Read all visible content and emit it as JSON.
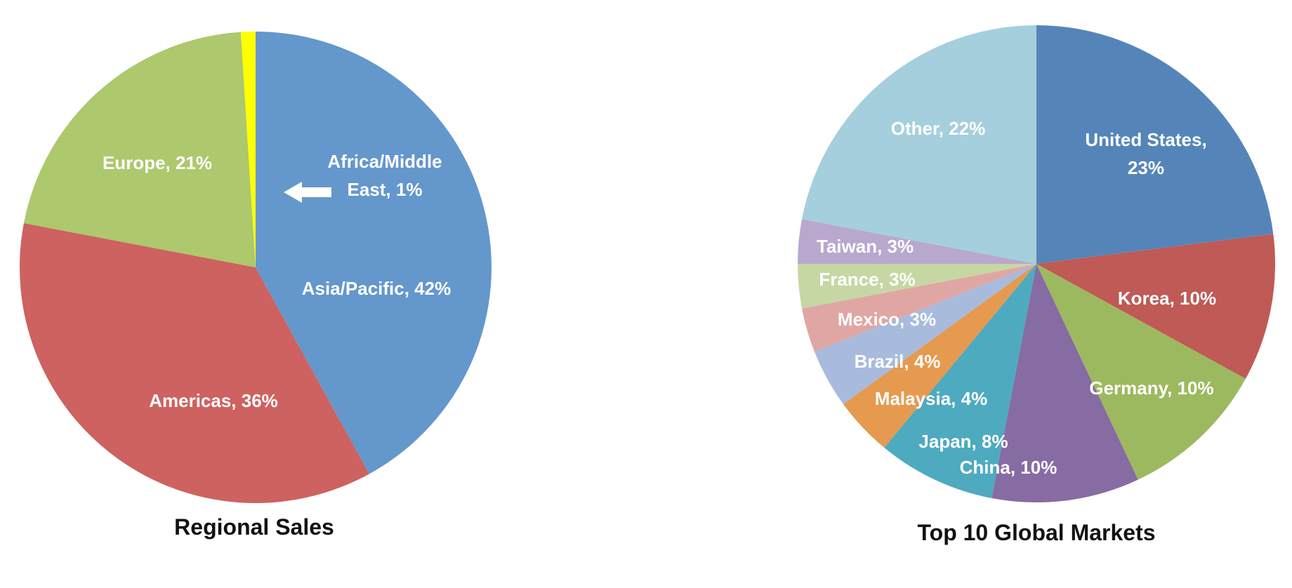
{
  "chart_data": [
    {
      "type": "pie",
      "title": "Regional Sales",
      "slices": [
        {
          "label": "Asia/Pacific, 42%",
          "name": "Asia/Pacific",
          "value": 42,
          "color": "#6497CC"
        },
        {
          "label": "Americas, 36%",
          "name": "Americas",
          "value": 36,
          "color": "#CD6260"
        },
        {
          "label": "Europe, 21%",
          "name": "Europe",
          "value": 21,
          "color": "#ADC86D"
        },
        {
          "label": "Africa/Middle East, 1%",
          "name": "Africa/Middle East",
          "value": 1,
          "color": "#FFFF00"
        }
      ]
    },
    {
      "type": "pie",
      "title": "Top 10 Global Markets",
      "slices": [
        {
          "label": "United States, 23%",
          "name": "United States",
          "value": 23,
          "color": "#5585B8"
        },
        {
          "label": "Korea, 10%",
          "name": "Korea",
          "value": 10,
          "color": "#BF5A56"
        },
        {
          "label": "Germany, 10%",
          "name": "Germany",
          "value": 10,
          "color": "#9DB95F"
        },
        {
          "label": "China, 10%",
          "name": "China",
          "value": 10,
          "color": "#876BA3"
        },
        {
          "label": "Japan, 8%",
          "name": "Japan",
          "value": 8,
          "color": "#4EAABF"
        },
        {
          "label": "Malaysia, 4%",
          "name": "Malaysia",
          "value": 4,
          "color": "#E59A4F"
        },
        {
          "label": "Brazil, 4%",
          "name": "Brazil",
          "value": 4,
          "color": "#A8BBDD"
        },
        {
          "label": "Mexico, 3%",
          "name": "Mexico",
          "value": 3,
          "color": "#DFA6A4"
        },
        {
          "label": "France, 3%",
          "name": "France",
          "value": 3,
          "color": "#C6D7A4"
        },
        {
          "label": "Taiwan, 3%",
          "name": "Taiwan",
          "value": 3,
          "color": "#B8A8CD"
        },
        {
          "label": "Other, 22%",
          "name": "Other",
          "value": 22,
          "color": "#A5CFDD"
        }
      ]
    }
  ],
  "annotations": {
    "arrow": "left-arrow-icon"
  }
}
